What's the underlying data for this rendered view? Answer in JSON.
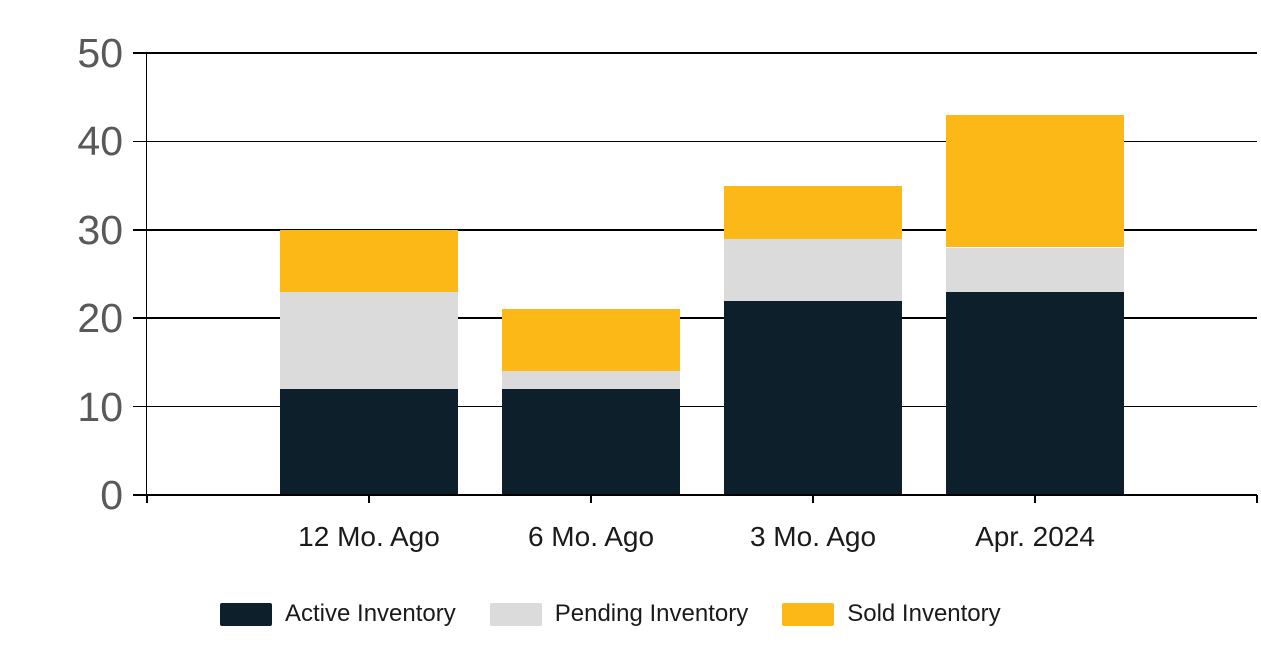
{
  "chart_data": {
    "type": "bar",
    "stacked": true,
    "title": "",
    "xlabel": "",
    "ylabel": "",
    "categories": [
      "12 Mo. Ago",
      "6 Mo. Ago",
      "3 Mo. Ago",
      "Apr. 2024"
    ],
    "series": [
      {
        "name": "Active Inventory",
        "color": "#0d1f2b",
        "values": [
          12,
          12,
          22,
          23
        ]
      },
      {
        "name": "Pending Inventory",
        "color": "#dbdbdb",
        "values": [
          11,
          2,
          7,
          5
        ]
      },
      {
        "name": "Sold Inventory",
        "color": "#fbb817",
        "values": [
          7,
          7,
          6,
          15
        ]
      }
    ],
    "stack_totals": [
      30,
      21,
      35,
      43
    ],
    "ylim": [
      0,
      50
    ],
    "yticks": [
      0,
      10,
      20,
      30,
      40,
      50
    ],
    "ytick_labels": [
      "0",
      "10",
      "20",
      "30",
      "40",
      "50"
    ],
    "grid": true,
    "legend_position": "bottom"
  },
  "style_colors": {
    "axis_line": "#000000",
    "y_tick_label": "#595959",
    "x_tick_label": "#1a1a1a",
    "legend_text": "#1a1a1a",
    "background": "#ffffff"
  }
}
